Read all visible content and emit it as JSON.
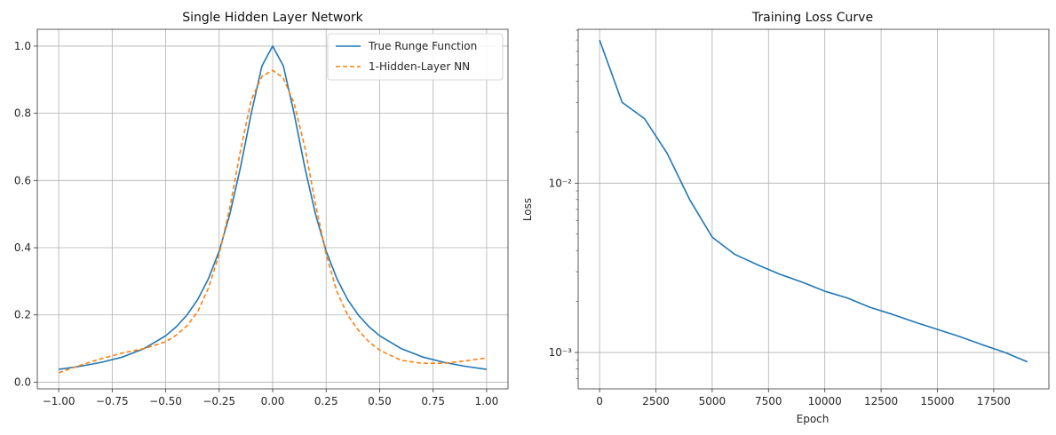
{
  "chart_data": [
    {
      "type": "line",
      "title": "Single Hidden Layer Network",
      "xlabel": "",
      "ylabel": "",
      "xlim": [
        -1.1,
        1.1
      ],
      "ylim": [
        -0.02,
        1.05
      ],
      "grid": true,
      "legend": "top-right",
      "x_ticks": [
        -1.0,
        -0.75,
        -0.5,
        -0.25,
        0.0,
        0.25,
        0.5,
        0.75,
        1.0
      ],
      "x_tick_labels": [
        "−1.00",
        "−0.75",
        "−0.50",
        "−0.25",
        "0.00",
        "0.25",
        "0.50",
        "0.75",
        "1.00"
      ],
      "y_ticks": [
        0.0,
        0.2,
        0.4,
        0.6,
        0.8,
        1.0
      ],
      "y_tick_labels": [
        "0.0",
        "0.2",
        "0.4",
        "0.6",
        "0.8",
        "1.0"
      ],
      "series": [
        {
          "name": "True Runge Function",
          "color": "#1f77b4",
          "style": "solid",
          "x": [
            -1.0,
            -0.9,
            -0.8,
            -0.7,
            -0.6,
            -0.5,
            -0.45,
            -0.4,
            -0.35,
            -0.3,
            -0.25,
            -0.2,
            -0.15,
            -0.1,
            -0.05,
            0.0,
            0.05,
            0.1,
            0.15,
            0.2,
            0.25,
            0.3,
            0.35,
            0.4,
            0.45,
            0.5,
            0.6,
            0.7,
            0.8,
            0.9,
            1.0
          ],
          "y": [
            0.038,
            0.047,
            0.059,
            0.075,
            0.1,
            0.138,
            0.165,
            0.2,
            0.246,
            0.308,
            0.39,
            0.5,
            0.64,
            0.8,
            0.941,
            1.0,
            0.941,
            0.8,
            0.64,
            0.5,
            0.39,
            0.308,
            0.246,
            0.2,
            0.165,
            0.138,
            0.1,
            0.075,
            0.059,
            0.047,
            0.038
          ]
        },
        {
          "name": "1-Hidden-Layer NN",
          "color": "#ff7f0e",
          "style": "dashed",
          "x": [
            -1.0,
            -0.9,
            -0.8,
            -0.7,
            -0.6,
            -0.5,
            -0.45,
            -0.4,
            -0.35,
            -0.3,
            -0.25,
            -0.2,
            -0.15,
            -0.1,
            -0.05,
            0.0,
            0.05,
            0.1,
            0.15,
            0.2,
            0.25,
            0.3,
            0.35,
            0.4,
            0.45,
            0.5,
            0.6,
            0.7,
            0.8,
            0.9,
            1.0
          ],
          "y": [
            0.028,
            0.05,
            0.07,
            0.087,
            0.1,
            0.12,
            0.14,
            0.168,
            0.21,
            0.28,
            0.38,
            0.52,
            0.69,
            0.84,
            0.91,
            0.928,
            0.905,
            0.83,
            0.7,
            0.53,
            0.38,
            0.27,
            0.2,
            0.155,
            0.12,
            0.095,
            0.065,
            0.056,
            0.056,
            0.063,
            0.072
          ]
        }
      ]
    },
    {
      "type": "line",
      "title": "Training Loss Curve",
      "xlabel": "Epoch",
      "ylabel": "Loss",
      "yscale": "log",
      "xlim": [
        -950,
        19950
      ],
      "ylim": [
        0.00061,
        0.081
      ],
      "grid": true,
      "x_ticks": [
        0,
        2500,
        5000,
        7500,
        10000,
        12500,
        15000,
        17500
      ],
      "x_tick_labels": [
        "0",
        "2500",
        "5000",
        "7500",
        "10000",
        "12500",
        "15000",
        "17500"
      ],
      "y_ticks": [
        0.001,
        0.01
      ],
      "y_tick_labels": [
        "10⁻³",
        "10⁻²"
      ],
      "series": [
        {
          "color": "#1f77b4",
          "style": "solid",
          "x": [
            0,
            1000,
            2000,
            3000,
            4000,
            5000,
            6000,
            7000,
            8000,
            9000,
            10000,
            11000,
            12000,
            13000,
            14000,
            15000,
            16000,
            17000,
            18000,
            19000
          ],
          "y": [
            0.07,
            0.03,
            0.024,
            0.015,
            0.008,
            0.0048,
            0.0038,
            0.0033,
            0.0029,
            0.0026,
            0.0023,
            0.0021,
            0.00185,
            0.00168,
            0.00151,
            0.00137,
            0.00124,
            0.00111,
            0.001,
            0.00088
          ]
        }
      ]
    }
  ]
}
